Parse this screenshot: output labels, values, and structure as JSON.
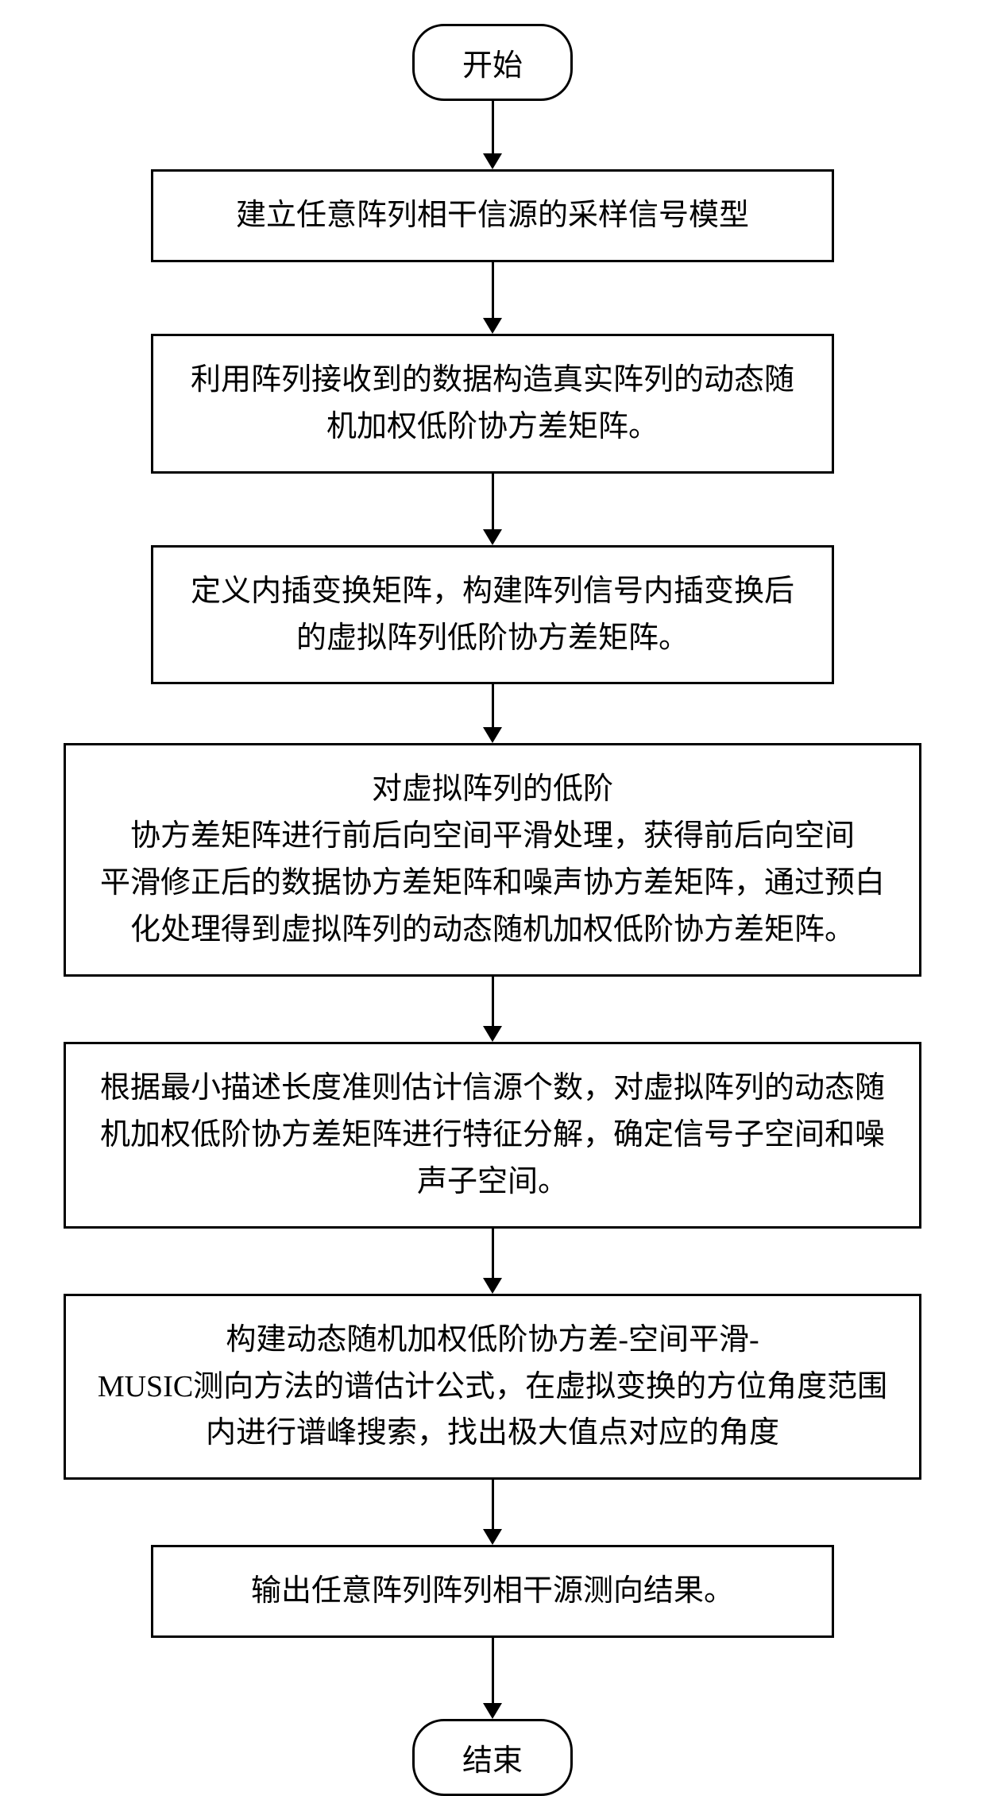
{
  "flowchart": {
    "type": "flowchart",
    "background_color": "#ffffff",
    "border_color": "#000000",
    "border_width": 3,
    "text_color": "#000000",
    "font_size_pt": 28,
    "font_family": "SimSun",
    "terminal_border_radius": 40,
    "nodes": [
      {
        "id": "start",
        "shape": "terminal",
        "label": "开始"
      },
      {
        "id": "step1",
        "shape": "process",
        "width": "narrow",
        "label": "建立任意阵列相干信源的采样信号模型"
      },
      {
        "id": "step2",
        "shape": "process",
        "width": "narrow",
        "label": "利用阵列接收到的数据构造真实阵列的动态随机加权低阶协方差矩阵。"
      },
      {
        "id": "step3",
        "shape": "process",
        "width": "narrow",
        "label": "定义内插变换矩阵，构建阵列信号内插变换后的虚拟阵列低阶协方差矩阵。"
      },
      {
        "id": "step4",
        "shape": "process",
        "width": "wide",
        "label": "对虚拟阵列的低阶\n协方差矩阵进行前后向空间平滑处理，获得前后向空间\n平滑修正后的数据协方差矩阵和噪声协方差矩阵，通过预白化处理得到虚拟阵列的动态随机加权低阶协方差矩阵。"
      },
      {
        "id": "step5",
        "shape": "process",
        "width": "wide",
        "label": "根据最小描述长度准则估计信源个数，对虚拟阵列的动态随机加权低阶协方差矩阵进行特征分解，确定信号子空间和噪声子空间。"
      },
      {
        "id": "step6",
        "shape": "process",
        "width": "wide",
        "label": "构建动态随机加权低阶协方差-空间平滑-\nMUSIC测向方法的谱估计公式，在虚拟变换的方位角度范围内进行谱峰搜索，找出极大值点对应的角度"
      },
      {
        "id": "step7",
        "shape": "process",
        "width": "narrow",
        "label": "输出任意阵列阵列相干源测向结果。"
      },
      {
        "id": "end",
        "shape": "terminal",
        "label": "结束"
      }
    ],
    "edges": [
      {
        "from": "start",
        "to": "step1",
        "length": 66
      },
      {
        "from": "step1",
        "to": "step2",
        "length": 70
      },
      {
        "from": "step2",
        "to": "step3",
        "length": 70
      },
      {
        "from": "step3",
        "to": "step4",
        "length": 54
      },
      {
        "from": "step4",
        "to": "step5",
        "length": 62
      },
      {
        "from": "step5",
        "to": "step6",
        "length": 62
      },
      {
        "from": "step6",
        "to": "step7",
        "length": 62
      },
      {
        "from": "step7",
        "to": "end",
        "length": 82
      }
    ]
  }
}
